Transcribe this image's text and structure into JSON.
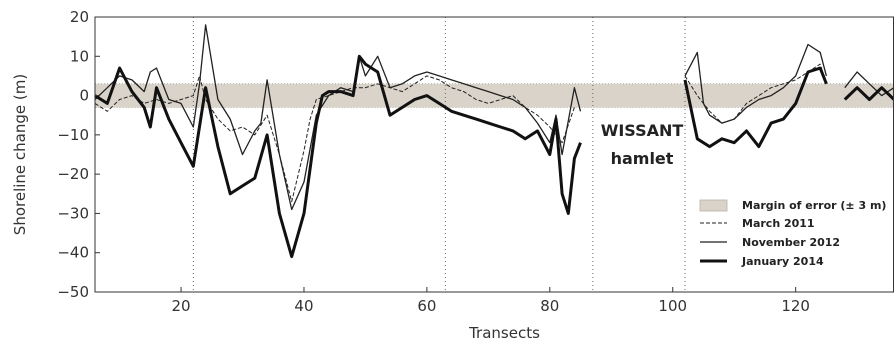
{
  "chart_data": {
    "type": "line",
    "title": "",
    "xlabel": "Transects",
    "ylabel": "Shoreline change (m)",
    "xlim": [
      6,
      136
    ],
    "ylim": [
      -50,
      20
    ],
    "xticks": [
      20,
      40,
      60,
      80,
      100,
      120
    ],
    "yticks": [
      -50,
      -40,
      -30,
      -20,
      -10,
      0,
      10,
      20
    ],
    "grid": false,
    "legend_position": "bottom-right",
    "margin_of_error": {
      "label": "Margin of error (± 3 m)",
      "lower": -3,
      "upper": 3,
      "color": "#d9d3c9"
    },
    "reference_lines_x": [
      22,
      63,
      87,
      102
    ],
    "annotation": {
      "lines": [
        "WISSANT",
        "hamlet"
      ],
      "x": 95,
      "y": -11
    },
    "series": [
      {
        "name": "March 2011",
        "style": "dashed",
        "stroke_width": 1,
        "segments": [
          [
            [
              6,
              -2
            ],
            [
              8,
              -4
            ],
            [
              10,
              -1
            ],
            [
              12,
              0
            ],
            [
              14,
              -2
            ],
            [
              16,
              -1
            ],
            [
              18,
              -2
            ],
            [
              20,
              -1
            ],
            [
              22,
              0
            ],
            [
              23,
              5
            ],
            [
              24,
              -1
            ],
            [
              26,
              -6
            ],
            [
              28,
              -9
            ],
            [
              30,
              -8
            ],
            [
              32,
              -10
            ],
            [
              34,
              -5
            ],
            [
              36,
              -15
            ],
            [
              38,
              -27
            ],
            [
              40,
              -14
            ],
            [
              41,
              -6
            ],
            [
              42,
              -1
            ],
            [
              44,
              0
            ],
            [
              46,
              1
            ],
            [
              48,
              2
            ],
            [
              50,
              2
            ],
            [
              52,
              3
            ],
            [
              54,
              2
            ],
            [
              56,
              1
            ],
            [
              58,
              3
            ],
            [
              60,
              5
            ],
            [
              62,
              4
            ],
            [
              64,
              2
            ],
            [
              66,
              1
            ],
            [
              68,
              -1
            ],
            [
              70,
              -2
            ],
            [
              72,
              -1
            ],
            [
              74,
              0
            ],
            [
              76,
              -3
            ],
            [
              78,
              -5
            ],
            [
              80,
              -8
            ],
            [
              82,
              -12
            ],
            [
              84,
              -3
            ]
          ],
          [
            [
              102,
              5
            ],
            [
              104,
              0
            ],
            [
              106,
              -4
            ],
            [
              108,
              -7
            ],
            [
              110,
              -6
            ],
            [
              112,
              -2
            ],
            [
              114,
              0
            ],
            [
              116,
              2
            ],
            [
              118,
              3
            ],
            [
              120,
              4
            ],
            [
              122,
              6
            ],
            [
              124,
              8
            ],
            [
              125,
              3
            ]
          ]
        ]
      },
      {
        "name": "November 2012",
        "style": "solid",
        "stroke_width": 1.3,
        "segments": [
          [
            [
              6,
              -1
            ],
            [
              8,
              2
            ],
            [
              10,
              5
            ],
            [
              12,
              4
            ],
            [
              14,
              1
            ],
            [
              15,
              6
            ],
            [
              16,
              7
            ],
            [
              18,
              -1
            ],
            [
              20,
              -2
            ],
            [
              22,
              -8
            ],
            [
              23,
              3
            ],
            [
              24,
              18
            ],
            [
              26,
              -1
            ],
            [
              28,
              -6
            ],
            [
              30,
              -15
            ],
            [
              32,
              -9
            ],
            [
              33,
              -7
            ],
            [
              34,
              4
            ],
            [
              36,
              -15
            ],
            [
              38,
              -29
            ],
            [
              40,
              -22
            ],
            [
              42,
              -5
            ],
            [
              44,
              0
            ],
            [
              46,
              2
            ],
            [
              48,
              1
            ],
            [
              49,
              10
            ],
            [
              50,
              5
            ],
            [
              52,
              10
            ],
            [
              54,
              2
            ],
            [
              56,
              3
            ],
            [
              58,
              5
            ],
            [
              60,
              6
            ],
            [
              62,
              5
            ],
            [
              64,
              4
            ],
            [
              66,
              3
            ],
            [
              68,
              2
            ],
            [
              70,
              1
            ],
            [
              72,
              0
            ],
            [
              74,
              -1
            ],
            [
              76,
              -3
            ],
            [
              78,
              -7
            ],
            [
              80,
              -12
            ],
            [
              81,
              -5
            ],
            [
              82,
              -15
            ],
            [
              84,
              2
            ],
            [
              85,
              -4
            ]
          ],
          [
            [
              102,
              5
            ],
            [
              104,
              11
            ],
            [
              105,
              -2
            ],
            [
              106,
              -5
            ],
            [
              108,
              -7
            ],
            [
              110,
              -6
            ],
            [
              112,
              -3
            ],
            [
              114,
              -1
            ],
            [
              116,
              0
            ],
            [
              118,
              2
            ],
            [
              120,
              5
            ],
            [
              122,
              13
            ],
            [
              124,
              11
            ],
            [
              125,
              5
            ]
          ],
          [
            [
              128,
              2
            ],
            [
              130,
              6
            ],
            [
              132,
              3
            ],
            [
              134,
              0
            ],
            [
              136,
              2
            ]
          ]
        ]
      },
      {
        "name": "January 2014",
        "style": "solid",
        "stroke_width": 3,
        "segments": [
          [
            [
              6,
              0
            ],
            [
              8,
              -2
            ],
            [
              10,
              7
            ],
            [
              12,
              1
            ],
            [
              14,
              -3
            ],
            [
              15,
              -8
            ],
            [
              16,
              2
            ],
            [
              18,
              -6
            ],
            [
              20,
              -12
            ],
            [
              22,
              -18
            ],
            [
              24,
              2
            ],
            [
              26,
              -13
            ],
            [
              28,
              -25
            ],
            [
              30,
              -23
            ],
            [
              32,
              -21
            ],
            [
              34,
              -10
            ],
            [
              36,
              -30
            ],
            [
              38,
              -41
            ],
            [
              40,
              -30
            ],
            [
              42,
              -7
            ],
            [
              43,
              0
            ],
            [
              44,
              1
            ],
            [
              46,
              1
            ],
            [
              48,
              0
            ],
            [
              49,
              10
            ],
            [
              50,
              8
            ],
            [
              52,
              6
            ],
            [
              54,
              -5
            ],
            [
              56,
              -3
            ],
            [
              58,
              -1
            ],
            [
              60,
              0
            ],
            [
              62,
              -2
            ],
            [
              64,
              -4
            ],
            [
              66,
              -5
            ],
            [
              68,
              -6
            ],
            [
              70,
              -7
            ],
            [
              72,
              -8
            ],
            [
              74,
              -9
            ],
            [
              76,
              -11
            ],
            [
              78,
              -9
            ],
            [
              80,
              -15
            ],
            [
              81,
              -6
            ],
            [
              82,
              -25
            ],
            [
              83,
              -30
            ],
            [
              84,
              -16
            ],
            [
              85,
              -12
            ]
          ],
          [
            [
              102,
              4
            ],
            [
              104,
              -11
            ],
            [
              106,
              -13
            ],
            [
              108,
              -11
            ],
            [
              110,
              -12
            ],
            [
              112,
              -9
            ],
            [
              114,
              -13
            ],
            [
              116,
              -7
            ],
            [
              118,
              -6
            ],
            [
              120,
              -2
            ],
            [
              122,
              6
            ],
            [
              124,
              7
            ],
            [
              125,
              3
            ]
          ],
          [
            [
              128,
              -1
            ],
            [
              130,
              2
            ],
            [
              132,
              -1
            ],
            [
              134,
              2
            ],
            [
              136,
              -1
            ]
          ]
        ]
      }
    ]
  }
}
